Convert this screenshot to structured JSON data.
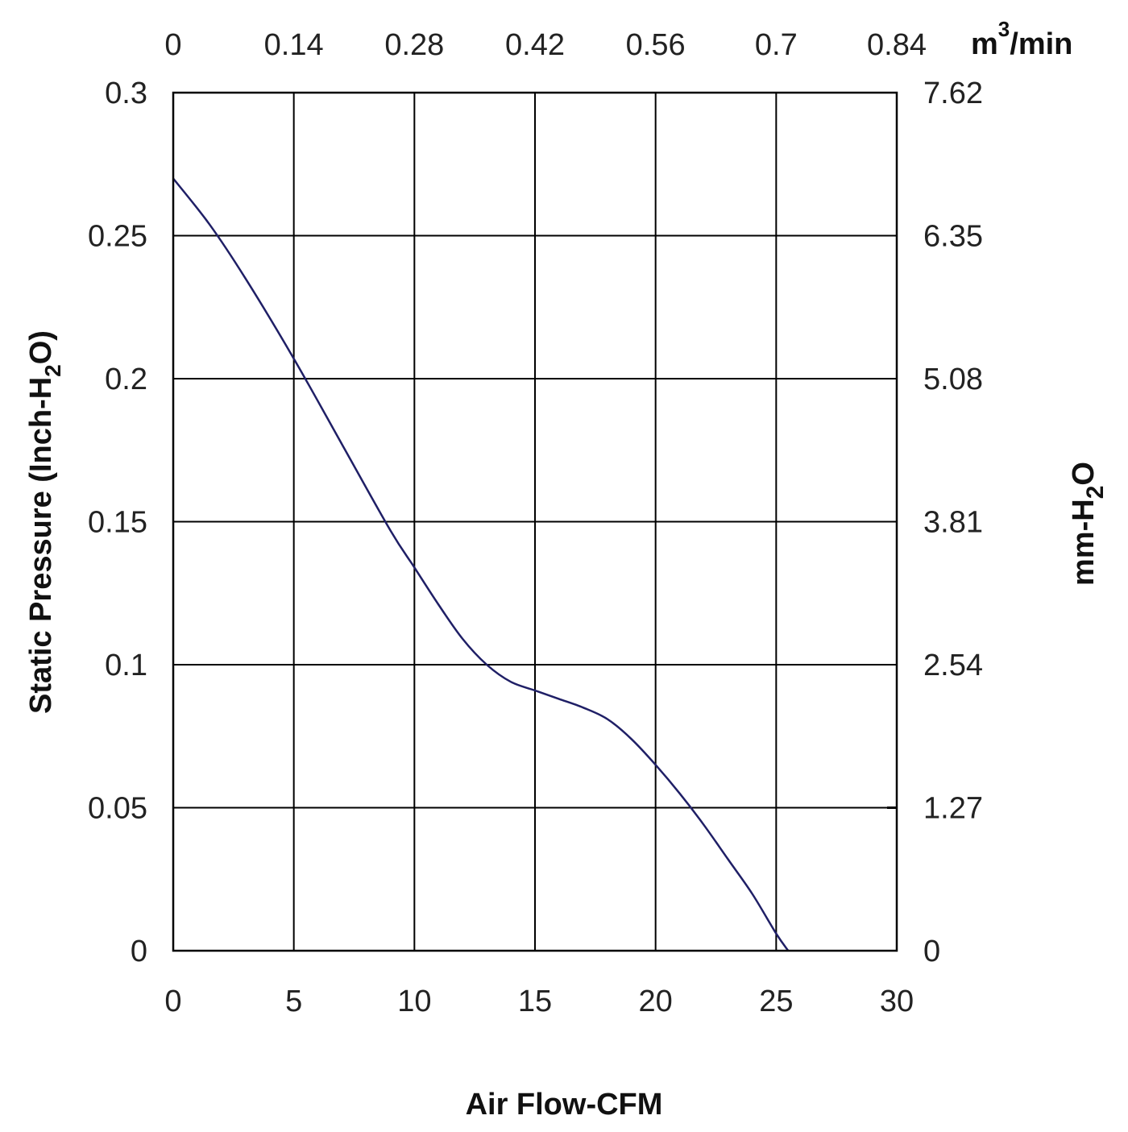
{
  "chart_data": {
    "type": "line",
    "title": "",
    "xlabel": "Air Flow-CFM",
    "ylabel": {
      "prefix": "Static Pressure (Inch-H",
      "sub": "2",
      "suffix": "O)"
    },
    "x2label": {
      "base": "m",
      "sup": "3",
      "suffix": "/min"
    },
    "y2label": {
      "prefix": "mm-H",
      "sub": "2",
      "suffix": "O"
    },
    "xlim": [
      0,
      30
    ],
    "ylim": [
      0,
      0.3
    ],
    "grid": true,
    "x_ticks": [
      "0",
      "5",
      "10",
      "15",
      "20",
      "25",
      "30"
    ],
    "y_ticks": [
      "0",
      "0.05",
      "0.1",
      "0.15",
      "0.2",
      "0.25",
      "0.3"
    ],
    "x2_ticks": [
      "0",
      "0.14",
      "0.28",
      "0.42",
      "0.56",
      "0.7",
      "0.84"
    ],
    "y2_ticks": [
      "0",
      "1.27",
      "2.54",
      "3.81",
      "5.08",
      "6.35",
      "7.62"
    ],
    "series": [
      {
        "color": "#1f1f66",
        "x": [
          0,
          1.5,
          3,
          5,
          7,
          9,
          10,
          11,
          12,
          13,
          14,
          15,
          16,
          17,
          18,
          19,
          20,
          21,
          22,
          23,
          24,
          25,
          25.5
        ],
        "y": [
          0.27,
          0.254,
          0.235,
          0.207,
          0.177,
          0.147,
          0.134,
          0.121,
          0.109,
          0.1,
          0.094,
          0.091,
          0.088,
          0.085,
          0.081,
          0.074,
          0.065,
          0.055,
          0.044,
          0.032,
          0.02,
          0.006,
          0.0
        ]
      }
    ]
  }
}
